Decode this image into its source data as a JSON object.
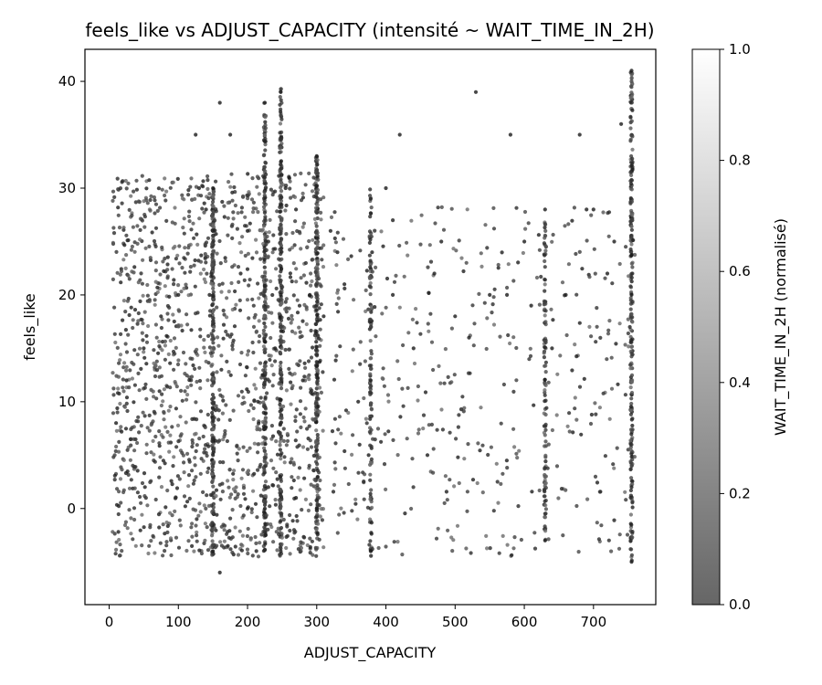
{
  "chart_data": {
    "type": "scatter",
    "title": "feels_like vs ADJUST_CAPACITY (intensité ~ WAIT_TIME_IN_2H)",
    "xlabel": "ADJUST_CAPACITY",
    "ylabel": "feels_like",
    "xlim": [
      -35,
      790
    ],
    "ylim": [
      -9,
      43
    ],
    "xticks": [
      0,
      100,
      200,
      300,
      400,
      500,
      600,
      700
    ],
    "yticks": [
      0,
      10,
      20,
      30,
      40
    ],
    "colorbar": {
      "label": "WAIT_TIME_IN_2H (normalisé)",
      "range": [
        0,
        1
      ],
      "ticks": [
        "0.0",
        "0.2",
        "0.4",
        "0.6",
        "0.8",
        "1.0"
      ],
      "colormap": "grayscale",
      "color_low": "#666666",
      "color_high": "#ffffff"
    },
    "grid": false,
    "point_color": "#2b2b2b",
    "dense_columns": [
      {
        "x": 150,
        "y_range": [
          -4.5,
          30
        ],
        "density": "high"
      },
      {
        "x": 225,
        "y_range": [
          -4,
          38
        ],
        "density": "high"
      },
      {
        "x": 248,
        "y_range": [
          -4.5,
          39.5
        ],
        "density": "high"
      },
      {
        "x": 300,
        "y_range": [
          -4,
          33
        ],
        "density": "high"
      },
      {
        "x": 378,
        "y_range": [
          -4.5,
          30
        ],
        "density": "medium"
      },
      {
        "x": 630,
        "y_range": [
          -3,
          28
        ],
        "density": "medium"
      },
      {
        "x": 755,
        "y_range": [
          -5,
          41
        ],
        "density": "high"
      }
    ],
    "series": [
      {
        "x": [
          125,
          130,
          140,
          145,
          150,
          150,
          150,
          160,
          175,
          215,
          225,
          225,
          230,
          240,
          248,
          248,
          248,
          248,
          255,
          260,
          270,
          280,
          290,
          300,
          300,
          310,
          340,
          360,
          375,
          378,
          378,
          378,
          380,
          400,
          420,
          440,
          460,
          480,
          500,
          530,
          550,
          580,
          600,
          630,
          630,
          640,
          660,
          690,
          720,
          740,
          755,
          755,
          755,
          755,
          200,
          100,
          75,
          50,
          25,
          10,
          200,
          190,
          320,
          330,
          410,
          470,
          520,
          575,
          610,
          680,
          700,
          730,
          270,
          230,
          160
        ],
        "y": [
          35,
          30,
          28,
          20,
          30,
          5,
          -4,
          38,
          35,
          10,
          38,
          0,
          25,
          15,
          39,
          20,
          5,
          -4,
          30,
          31,
          28,
          12,
          20,
          33,
          0,
          18,
          21,
          10,
          5,
          29,
          12,
          -4,
          24,
          30,
          35,
          15,
          5,
          25,
          18,
          39,
          20,
          35,
          25,
          28,
          -3,
          15,
          20,
          28,
          22,
          36,
          41,
          20,
          2,
          -5,
          0,
          20,
          18,
          15,
          12,
          8,
          26,
          22,
          26,
          24,
          20,
          22,
          16,
          20,
          19,
          35,
          28,
          25,
          1,
          2,
          -6
        ]
      }
    ]
  }
}
